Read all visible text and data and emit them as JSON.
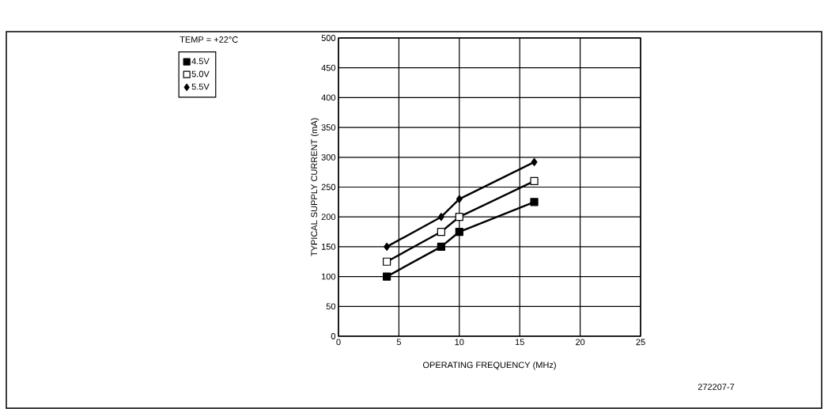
{
  "chart_data": {
    "type": "line",
    "xlabel": "OPERATING FREQUENCY (MHz)",
    "ylabel": "TYPICAL SUPPLY CURRENT (mA)",
    "legend_title": "TEMP = +22°C",
    "xlim": [
      0,
      25
    ],
    "xticks": [
      0,
      5,
      10,
      15,
      20,
      25
    ],
    "ylim": [
      0,
      500
    ],
    "yticks": [
      0,
      50,
      100,
      150,
      200,
      250,
      300,
      350,
      400,
      450,
      500
    ],
    "grid": true,
    "legend": "top left",
    "series": [
      {
        "name": "4.5V",
        "color": "#000000",
        "marker": "square",
        "x": [
          4,
          8.5,
          10,
          16.2
        ],
        "values": [
          100,
          150,
          175,
          225
        ]
      },
      {
        "name": "5.0V",
        "color": "#ffffff",
        "marker": "square",
        "x": [
          4,
          8.5,
          10,
          16.2
        ],
        "values": [
          125,
          175,
          200,
          260
        ]
      },
      {
        "name": "5.5V",
        "color": "#000000",
        "marker": "diamond",
        "x": [
          4,
          8.5,
          10,
          16.2
        ],
        "values": [
          150,
          200,
          230,
          292
        ]
      }
    ],
    "annotations": [
      "272207-7"
    ]
  }
}
